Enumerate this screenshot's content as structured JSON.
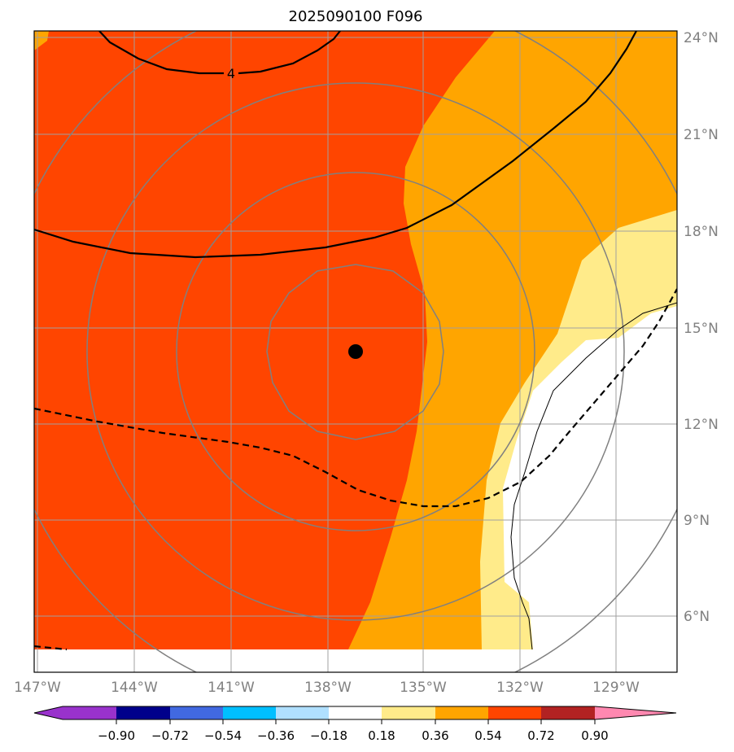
{
  "title": "2025090100 F096",
  "map": {
    "lon_labels": [
      "147°W",
      "144°W",
      "141°W",
      "138°W",
      "135°W",
      "132°W",
      "129°W"
    ],
    "lat_labels": [
      "24°N",
      "21°N",
      "18°N",
      "15°N",
      "12°N",
      "9°N",
      "6°N"
    ],
    "contour_label": "4",
    "storm_center": "137°W, 14.3°N"
  },
  "colorbar": {
    "ticks": [
      "−0.90",
      "−0.72",
      "−0.54",
      "−0.36",
      "−0.18",
      "0.18",
      "0.36",
      "0.54",
      "0.72",
      "0.90"
    ],
    "colors": [
      "#9932cc",
      "#00008b",
      "#4169e1",
      "#00bfff",
      "#b0e0ff",
      "#ffffff",
      "#ffeb8a",
      "#ffa500",
      "#ff4500",
      "#b22222",
      "#ff88b0"
    ]
  }
}
